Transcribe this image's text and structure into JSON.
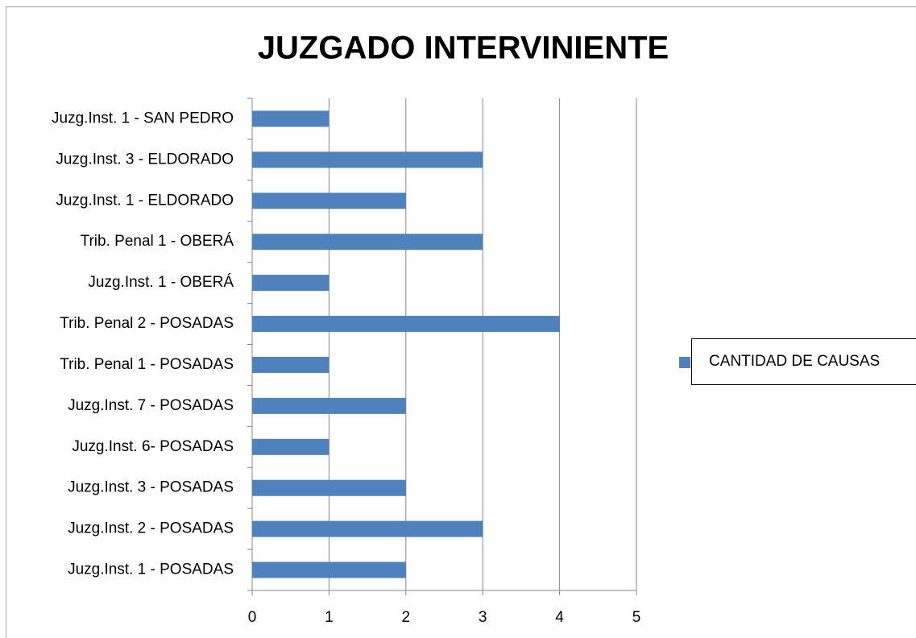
{
  "chart_data": {
    "type": "bar",
    "orientation": "horizontal",
    "title": "JUZGADO  INTERVINIENTE",
    "categories": [
      "Juzg.Inst. 1 - SAN PEDRO",
      "Juzg.Inst. 3 - ELDORADO",
      "Juzg.Inst. 1 - ELDORADO",
      "Trib. Penal 1 - OBERÁ",
      "Juzg.Inst. 1 - OBERÁ",
      "Trib. Penal 2 - POSADAS",
      "Trib. Penal 1 - POSADAS",
      "Juzg.Inst. 7 - POSADAS",
      "Juzg.Inst. 6- POSADAS",
      "Juzg.Inst. 3 - POSADAS",
      "Juzg.Inst. 2 - POSADAS",
      "Juzg.Inst. 1 - POSADAS"
    ],
    "series": [
      {
        "name": "CANTIDAD DE CAUSAS",
        "color": "#4f81bd",
        "values": [
          1,
          3,
          2,
          3,
          1,
          4,
          1,
          2,
          1,
          2,
          3,
          2
        ]
      }
    ],
    "xlim": [
      0,
      5
    ],
    "xticks": [
      0,
      1,
      2,
      3,
      4,
      5
    ],
    "grid": true,
    "legend": "right"
  }
}
